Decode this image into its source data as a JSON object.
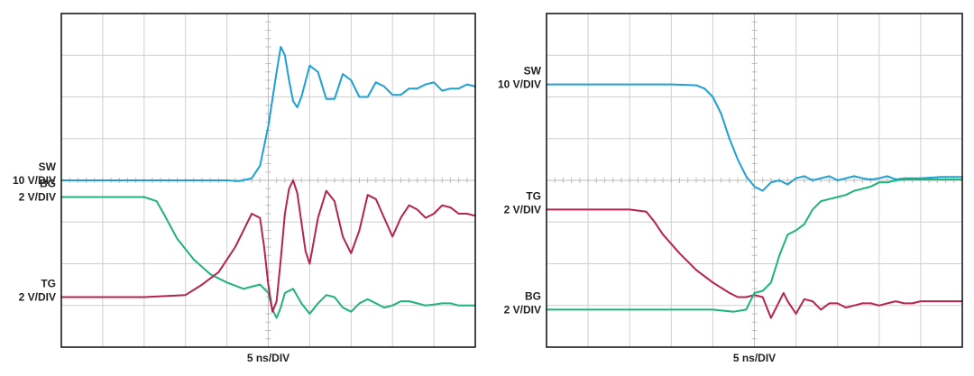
{
  "chart_data": [
    {
      "type": "line",
      "title": "",
      "xlabel": "5 ns/DIV",
      "ylabel": "",
      "grid": true,
      "xlim": [
        0,
        10
      ],
      "ylim": [
        -4,
        4
      ],
      "channel_labels": [
        {
          "name": "SW",
          "scale": "10 V/DIV",
          "y": 0
        },
        {
          "name": "BG",
          "scale": "2 V/DIV",
          "y": -0.4
        },
        {
          "name": "TG",
          "scale": "2 V/DIV",
          "y": -2.8
        }
      ],
      "series": [
        {
          "name": "SW",
          "color": "#1f9fd4",
          "x": [
            0,
            1,
            2,
            3,
            4,
            4.3,
            4.6,
            4.8,
            5.0,
            5.2,
            5.3,
            5.4,
            5.5,
            5.6,
            5.7,
            5.8,
            6.0,
            6.2,
            6.4,
            6.6,
            6.8,
            7.0,
            7.2,
            7.4,
            7.6,
            7.8,
            8.0,
            8.2,
            8.4,
            8.6,
            8.8,
            9.0,
            9.2,
            9.4,
            9.6,
            9.8,
            10
          ],
          "y": [
            0,
            0,
            0,
            0,
            0,
            -0.02,
            0.05,
            0.35,
            1.3,
            2.6,
            3.2,
            3.0,
            2.4,
            1.9,
            1.75,
            2.0,
            2.75,
            2.6,
            1.95,
            1.95,
            2.55,
            2.4,
            2.0,
            2.0,
            2.35,
            2.25,
            2.05,
            2.05,
            2.2,
            2.2,
            2.3,
            2.35,
            2.15,
            2.2,
            2.2,
            2.3,
            2.25
          ]
        },
        {
          "name": "BG",
          "color": "#1fb37a",
          "x": [
            0,
            1,
            2,
            2.3,
            2.5,
            2.8,
            3.2,
            3.6,
            4.0,
            4.4,
            4.6,
            4.8,
            5.0,
            5.1,
            5.2,
            5.3,
            5.4,
            5.6,
            5.8,
            6.0,
            6.2,
            6.4,
            6.6,
            6.8,
            7.0,
            7.2,
            7.4,
            7.6,
            7.8,
            8.0,
            8.2,
            8.4,
            8.6,
            8.8,
            9.0,
            9.2,
            9.4,
            9.6,
            9.8,
            10
          ],
          "y": [
            -0.4,
            -0.4,
            -0.4,
            -0.5,
            -0.85,
            -1.4,
            -1.9,
            -2.25,
            -2.45,
            -2.6,
            -2.55,
            -2.5,
            -2.7,
            -3.1,
            -3.3,
            -3.05,
            -2.7,
            -2.6,
            -2.95,
            -3.2,
            -2.95,
            -2.75,
            -2.8,
            -3.05,
            -3.15,
            -2.95,
            -2.85,
            -2.95,
            -3.05,
            -3.0,
            -2.9,
            -2.9,
            -2.95,
            -3.0,
            -2.98,
            -2.95,
            -2.95,
            -3.0,
            -3.0,
            -3.0
          ]
        },
        {
          "name": "TG",
          "color": "#b5234f",
          "x": [
            0,
            1,
            2,
            3,
            3.4,
            3.8,
            4.0,
            4.2,
            4.4,
            4.6,
            4.8,
            4.9,
            5.0,
            5.1,
            5.2,
            5.3,
            5.4,
            5.5,
            5.6,
            5.7,
            5.8,
            5.9,
            6.0,
            6.2,
            6.4,
            6.6,
            6.8,
            7.0,
            7.2,
            7.4,
            7.6,
            7.8,
            8.0,
            8.2,
            8.4,
            8.6,
            8.8,
            9.0,
            9.2,
            9.4,
            9.6,
            9.8,
            10
          ],
          "y": [
            -2.8,
            -2.8,
            -2.8,
            -2.75,
            -2.5,
            -2.2,
            -1.9,
            -1.6,
            -1.2,
            -0.8,
            -0.9,
            -1.6,
            -2.5,
            -3.15,
            -2.9,
            -1.9,
            -0.8,
            -0.2,
            0,
            -0.3,
            -1.0,
            -1.7,
            -2.0,
            -0.9,
            -0.25,
            -0.5,
            -1.35,
            -1.75,
            -1.2,
            -0.35,
            -0.45,
            -0.9,
            -1.35,
            -0.9,
            -0.6,
            -0.7,
            -0.9,
            -0.8,
            -0.6,
            -0.65,
            -0.8,
            -0.8,
            -0.85
          ]
        }
      ]
    },
    {
      "type": "line",
      "title": "",
      "xlabel": "5 ns/DIV",
      "ylabel": "",
      "grid": true,
      "xlim": [
        0,
        10
      ],
      "ylim": [
        -4,
        4
      ],
      "channel_labels": [
        {
          "name": "SW",
          "scale": "10 V/DIV",
          "y": 2.3
        },
        {
          "name": "TG",
          "scale": "2 V/DIV",
          "y": -0.7
        },
        {
          "name": "BG",
          "scale": "2 V/DIV",
          "y": -3.1
        }
      ],
      "series": [
        {
          "name": "SW",
          "color": "#1f9fd4",
          "x": [
            0,
            1,
            2,
            3,
            3.6,
            3.8,
            4.0,
            4.2,
            4.4,
            4.6,
            4.8,
            5.0,
            5.2,
            5.4,
            5.6,
            5.8,
            6.0,
            6.2,
            6.4,
            6.6,
            6.8,
            7.0,
            7.2,
            7.4,
            7.6,
            7.8,
            8.0,
            8.2,
            8.4,
            8.6,
            8.8,
            9.0,
            9.5,
            10
          ],
          "y": [
            2.3,
            2.3,
            2.3,
            2.3,
            2.28,
            2.2,
            2.0,
            1.6,
            1.0,
            0.5,
            0.1,
            -0.15,
            -0.25,
            -0.05,
            0.0,
            -0.1,
            0.05,
            0.1,
            0.0,
            0.05,
            0.1,
            0.0,
            0.05,
            0.1,
            0.05,
            0.02,
            0.05,
            0.1,
            0.02,
            0.05,
            0.05,
            0.05,
            0.08,
            0.08
          ]
        },
        {
          "name": "TG",
          "color": "#b5234f",
          "x": [
            0,
            1,
            2,
            2.4,
            2.6,
            2.8,
            3.2,
            3.6,
            4.0,
            4.4,
            4.6,
            4.8,
            5.0,
            5.2,
            5.4,
            5.6,
            5.7,
            5.8,
            6.0,
            6.2,
            6.4,
            6.6,
            6.8,
            7.0,
            7.2,
            7.4,
            7.6,
            7.8,
            8.0,
            8.2,
            8.4,
            8.6,
            8.8,
            9.0,
            9.5,
            10
          ],
          "y": [
            -0.7,
            -0.7,
            -0.7,
            -0.75,
            -1.0,
            -1.3,
            -1.75,
            -2.15,
            -2.45,
            -2.7,
            -2.8,
            -2.8,
            -2.75,
            -2.8,
            -3.3,
            -2.9,
            -2.7,
            -2.9,
            -3.2,
            -2.85,
            -2.9,
            -3.1,
            -2.95,
            -2.95,
            -3.05,
            -3.0,
            -2.95,
            -2.95,
            -3.0,
            -2.95,
            -2.9,
            -2.95,
            -2.95,
            -2.9,
            -2.9,
            -2.9
          ]
        },
        {
          "name": "BG",
          "color": "#1fb37a",
          "x": [
            0,
            1,
            2,
            3,
            4,
            4.5,
            4.8,
            5.0,
            5.2,
            5.4,
            5.6,
            5.8,
            6.0,
            6.2,
            6.4,
            6.6,
            6.8,
            7.0,
            7.2,
            7.4,
            7.6,
            7.8,
            8.0,
            8.2,
            8.4,
            8.6,
            8.8,
            9.0,
            9.5,
            10
          ],
          "y": [
            -3.1,
            -3.1,
            -3.1,
            -3.1,
            -3.1,
            -3.15,
            -3.1,
            -2.7,
            -2.65,
            -2.45,
            -1.8,
            -1.3,
            -1.2,
            -1.05,
            -0.7,
            -0.5,
            -0.45,
            -0.4,
            -0.35,
            -0.25,
            -0.2,
            -0.15,
            -0.05,
            -0.05,
            0,
            0.02,
            0.02,
            0.02,
            0.02,
            0.02
          ]
        }
      ]
    }
  ]
}
